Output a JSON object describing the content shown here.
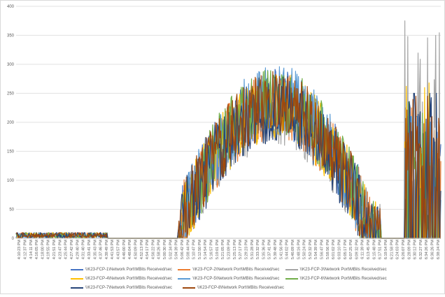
{
  "chart_data": {
    "type": "line",
    "title": "",
    "xlabel": "",
    "ylabel": "",
    "ylim": [
      0,
      400
    ],
    "y_ticks": [
      0,
      50,
      100,
      150,
      200,
      250,
      300,
      350,
      400
    ],
    "grid": "horizontal",
    "legend_position": "bottom",
    "x_tick_labels": [
      "4:10:23 PM",
      "4:12:37 PM",
      "4:14:11 PM",
      "4:16:05 PM",
      "4:18:00 PM",
      "4:19:55 PM",
      "4:21:51 PM",
      "4:23:47 PM",
      "4:25:44 PM",
      "4:27:42 PM",
      "4:29:40 PM",
      "4:31:40 PM",
      "4:33:41 PM",
      "4:35:43 PM",
      "4:37:46 PM",
      "4:39:49 PM",
      "4:41:53 PM",
      "4:43:57 PM",
      "4:46:00 PM",
      "4:48:04 PM",
      "4:50:09 PM",
      "4:52:13 PM",
      "4:54:17 PM",
      "4:56:22 PM",
      "4:58:26 PM",
      "5:00:30 PM",
      "5:02:34 PM",
      "5:04:39 PM",
      "5:06:42 PM",
      "5:08:44 PM",
      "5:10:47 PM",
      "5:12:50 PM",
      "5:14:54 PM",
      "5:16:57 PM",
      "5:19:01 PM",
      "5:21:05 PM",
      "5:23:09 PM",
      "5:25:13 PM",
      "5:27:17 PM",
      "5:29:23 PM",
      "5:31:28 PM",
      "5:33:32 PM",
      "5:35:36 PM",
      "5:37:41 PM",
      "5:39:48 PM",
      "5:41:56 PM",
      "5:44:02 PM",
      "5:46:09 PM",
      "5:48:16 PM",
      "5:50:24 PM",
      "5:52:32 PM",
      "5:54:39 PM",
      "5:56:47 PM",
      "5:58:56 PM",
      "6:01:02 PM",
      "6:03:10 PM",
      "6:05:17 PM",
      "6:07:25 PM",
      "6:09:32 PM",
      "6:11:39 PM",
      "6:13:45 PM",
      "6:15:48 PM",
      "6:17:51 PM",
      "6:19:54 PM",
      "6:21:58 PM",
      "6:24:03 PM",
      "6:26:07 PM",
      "6:28:09 PM",
      "6:30:12 PM",
      "6:32:27 PM",
      "6:34:26 PM",
      "6:36:26 PM",
      "6:38:24 PM"
    ],
    "series": [
      {
        "name": "\\\\K23-FCP-1\\Network Port\\MBits Received/sec",
        "color": "#4472c4",
        "seed": 11,
        "peak": 1.0,
        "spike": 183
      },
      {
        "name": "\\\\K23-FCP-2\\Network Port\\MBits Received/sec",
        "color": "#ed7d31",
        "seed": 23,
        "peak": 0.97,
        "spike": 225
      },
      {
        "name": "\\\\K23-FCP-3\\Network Port\\MBits Received/sec",
        "color": "#a5a5a5",
        "seed": 37,
        "peak": 0.93,
        "spike": 375
      },
      {
        "name": "\\\\K23-FCP-4\\Network Port\\MBits Received/sec",
        "color": "#ffc000",
        "seed": 41,
        "peak": 0.98,
        "spike": 268
      },
      {
        "name": "\\\\K23-FCP-5\\Network Port\\MBits Received/sec",
        "color": "#5b9bd5",
        "seed": 53,
        "peak": 1.03,
        "spike": 210
      },
      {
        "name": "\\\\K23-FCP-6\\Network Port\\MBits Received/sec",
        "color": "#70ad47",
        "seed": 67,
        "peak": 1.01,
        "spike": 235
      },
      {
        "name": "\\\\K23-FCP-7\\Network Port\\MBits Received/sec",
        "color": "#264478",
        "seed": 79,
        "peak": 0.95,
        "spike": 250
      },
      {
        "name": "\\\\K23-FCP-8\\Network Port\\MBits Received/sec",
        "color": "#9e480e",
        "seed": 97,
        "peak": 0.99,
        "spike": 245
      }
    ]
  }
}
